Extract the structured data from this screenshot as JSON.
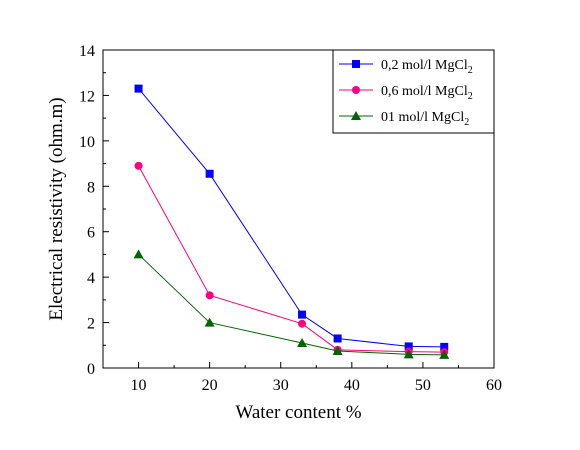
{
  "chart_data": {
    "type": "line",
    "title": "",
    "xlabel": "Water content %",
    "ylabel": "Electrical resistivity (ohm.m)",
    "xlim": [
      5,
      60
    ],
    "ylim": [
      0,
      14
    ],
    "xticks": [
      10,
      20,
      30,
      40,
      50,
      60
    ],
    "yticks": [
      0,
      2,
      4,
      6,
      8,
      10,
      12,
      14
    ],
    "grid": false,
    "legend_position": "top-right",
    "series": [
      {
        "name_main": "0,2 mol/l MgCl",
        "name_sub": "2",
        "color": "#0000ff",
        "marker": "square",
        "x": [
          10,
          20,
          33,
          38,
          48,
          53
        ],
        "y": [
          12.3,
          8.55,
          2.35,
          1.3,
          0.95,
          0.93
        ]
      },
      {
        "name_main": "0,6 mol/l MgCl",
        "name_sub": "2",
        "color": "#ff0080",
        "marker": "circle",
        "x": [
          10,
          20,
          33,
          38,
          48,
          53
        ],
        "y": [
          8.9,
          3.2,
          1.95,
          0.8,
          0.72,
          0.7
        ]
      },
      {
        "name_main": "01 mol/l MgCl",
        "name_sub": "2",
        "color": "#006400",
        "marker": "triangle",
        "x": [
          10,
          20,
          33,
          38,
          48,
          53
        ],
        "y": [
          5.0,
          2.0,
          1.1,
          0.75,
          0.6,
          0.58
        ]
      }
    ]
  }
}
